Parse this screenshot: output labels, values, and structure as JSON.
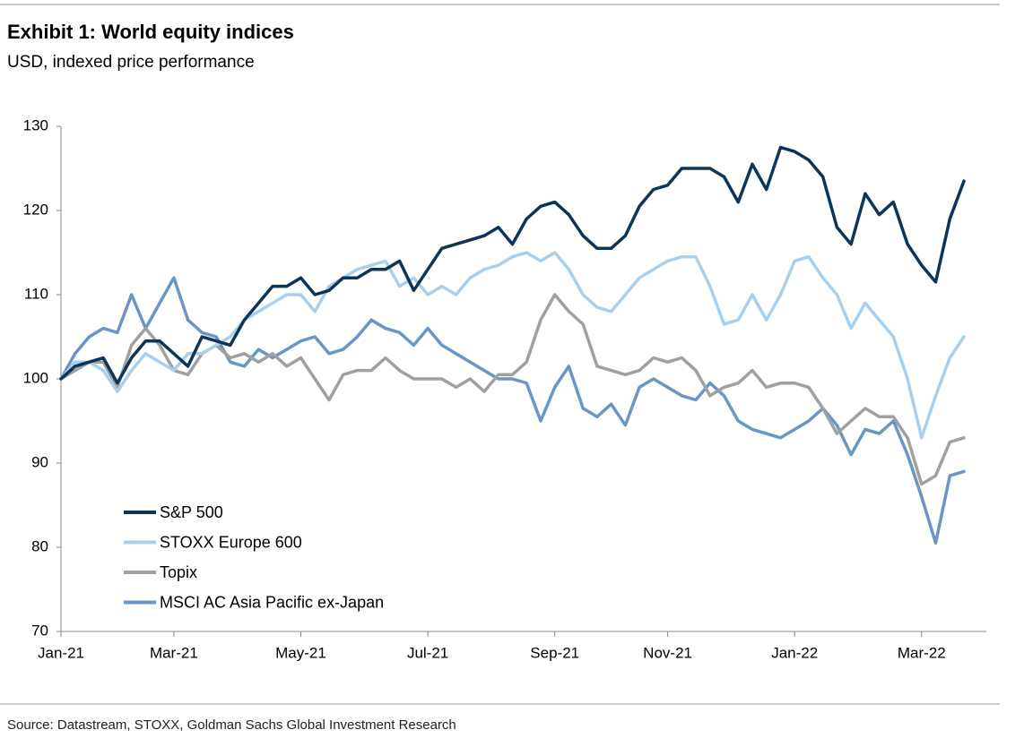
{
  "chart_data": {
    "type": "line",
    "title": "Exhibit 1: World equity indices",
    "subtitle": "USD, indexed price performance",
    "source": "Source: Datastream, STOXX, Goldman Sachs Global Investment Research",
    "categories": [
      "Jan-21",
      null,
      null,
      null,
      null,
      null,
      null,
      null,
      "Mar-21",
      null,
      null,
      null,
      null,
      null,
      null,
      null,
      null,
      "May-21",
      null,
      null,
      null,
      null,
      null,
      null,
      null,
      null,
      "Jul-21",
      null,
      null,
      null,
      null,
      null,
      null,
      null,
      null,
      "Sep-21",
      null,
      null,
      null,
      null,
      null,
      null,
      null,
      "Nov-21",
      null,
      null,
      null,
      null,
      null,
      null,
      null,
      null,
      "Jan-22",
      null,
      null,
      null,
      null,
      null,
      null,
      null,
      null,
      "Mar-22",
      null,
      null,
      null
    ],
    "ylim": [
      70,
      130
    ],
    "yticks": [
      70,
      80,
      90,
      100,
      110,
      120,
      130
    ],
    "legend": "lower left",
    "series": [
      {
        "name": "S&P 500",
        "color": "#0c3559",
        "values": [
          100,
          101.5,
          102,
          102.5,
          99.5,
          102.5,
          104.5,
          104.5,
          103,
          101.5,
          105,
          104.5,
          104,
          107,
          109,
          111,
          111,
          112,
          110,
          110.5,
          112,
          112,
          113,
          113,
          114,
          110.5,
          113,
          115.5,
          116,
          116.5,
          117,
          118,
          116,
          119,
          120.5,
          121,
          119.5,
          117,
          115.5,
          115.5,
          117,
          120.5,
          122.5,
          123,
          125,
          125,
          125,
          124,
          121,
          125.5,
          122.5,
          127.5,
          127,
          126,
          124,
          118,
          116,
          122,
          119.5,
          121,
          116,
          113.5,
          111.5,
          119,
          123.5
        ]
      },
      {
        "name": "STOXX Europe 600",
        "color": "#a8d0ee",
        "values": [
          100,
          102,
          102,
          101,
          98.5,
          101,
          103,
          102,
          101,
          103,
          103,
          104,
          105,
          107,
          108,
          109,
          110,
          110,
          108,
          111,
          112,
          113,
          113.5,
          114,
          111,
          112,
          110,
          111,
          110,
          112,
          113,
          113.5,
          114.5,
          115,
          114,
          115,
          113,
          110,
          108.5,
          108,
          110,
          112,
          113,
          114,
          114.5,
          114.5,
          111,
          106.5,
          107,
          110,
          107,
          110,
          114,
          114.5,
          112,
          110,
          106,
          109,
          107,
          105,
          100,
          93,
          98,
          102.5,
          105
        ]
      },
      {
        "name": "Topix",
        "color": "#a0a0a0",
        "values": [
          100,
          101,
          102,
          102,
          99,
          104,
          106,
          104,
          101,
          100.5,
          103,
          104,
          102.5,
          103,
          102,
          103,
          101.5,
          102.5,
          100,
          97.5,
          100.5,
          101,
          101,
          102.5,
          101,
          100,
          100,
          100,
          99,
          100,
          98.5,
          100.5,
          100.5,
          102,
          107,
          110,
          108,
          106.5,
          101.5,
          101,
          100.5,
          101,
          102.5,
          102,
          102.5,
          101,
          98,
          99,
          99.5,
          101,
          99,
          99.5,
          99.5,
          99,
          96.5,
          93.5,
          95,
          96.5,
          95.5,
          95.5,
          93,
          87.5,
          88.5,
          92.5,
          93
        ]
      },
      {
        "name": "MSCI AC Asia Pacific ex-Japan",
        "color": "#6b95c4",
        "values": [
          100,
          103,
          105,
          106,
          105.5,
          110,
          106,
          109,
          112,
          107,
          105.5,
          105,
          102,
          101.5,
          103.5,
          102.5,
          103.5,
          104.5,
          105,
          103,
          103.5,
          105,
          107,
          106,
          105.5,
          104,
          106,
          104,
          103,
          102,
          101,
          100,
          100,
          99.5,
          95,
          99,
          101.5,
          96.5,
          95.5,
          97,
          94.5,
          99,
          100,
          99,
          98,
          97.5,
          99.5,
          98,
          95,
          94,
          93.5,
          93,
          94,
          95,
          96.5,
          94.5,
          91,
          94,
          93.5,
          95,
          91,
          86,
          80.5,
          88.5,
          89
        ]
      }
    ]
  }
}
